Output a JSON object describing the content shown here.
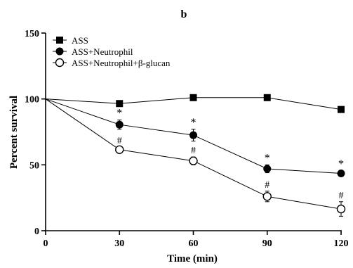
{
  "panel_label": "b",
  "chart_data": {
    "type": "line",
    "title": "",
    "xlabel": "Time (min)",
    "ylabel": "Percent survival",
    "x": [
      0,
      30,
      60,
      90,
      120
    ],
    "xlim": [
      0,
      120
    ],
    "ylim": [
      0,
      150
    ],
    "xticks": [
      0,
      30,
      60,
      90,
      120
    ],
    "yticks": [
      0,
      50,
      100,
      150
    ],
    "legend_position": "top-left",
    "series": [
      {
        "name": "ASS",
        "marker": "filled-square",
        "values": [
          100,
          96.5,
          101,
          101,
          92
        ],
        "errors": [
          0,
          1.5,
          2,
          1.5,
          2
        ],
        "annotations": [
          "",
          "",
          "",
          "",
          ""
        ]
      },
      {
        "name": "ASS+Neutrophil",
        "marker": "filled-circle",
        "values": [
          100,
          80.5,
          72.5,
          47,
          43.5
        ],
        "errors": [
          0,
          3.5,
          4.5,
          3,
          2
        ],
        "annotations": [
          "",
          "*",
          "*",
          "*",
          "*"
        ]
      },
      {
        "name": "ASS+Neutrophil+β-glucan",
        "marker": "open-circle",
        "values": [
          100,
          61.5,
          53,
          26,
          16.5
        ],
        "errors": [
          0,
          2,
          3,
          4,
          5.5
        ],
        "annotations": [
          "",
          "#",
          "#",
          "#",
          "#"
        ]
      }
    ]
  }
}
